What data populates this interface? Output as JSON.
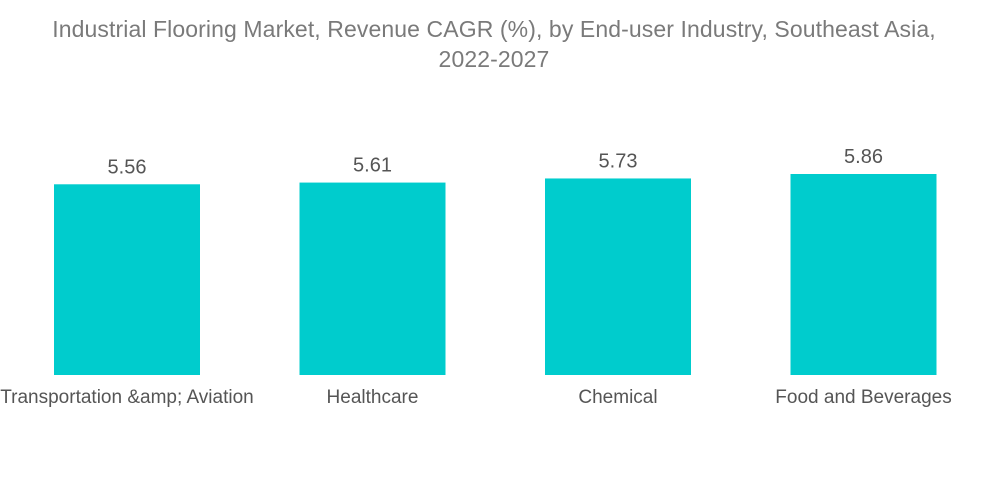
{
  "chart_data": {
    "type": "bar",
    "title_line1": "Industrial Flooring Market, Revenue CAGR (%), by End-user Industry, Southeast Asia,",
    "title_line2": "2022-2027",
    "categories": [
      "Transportation &amp; Aviation",
      "Healthcare",
      "Chemical",
      "Food and Beverages"
    ],
    "values": [
      5.56,
      5.61,
      5.73,
      5.86
    ],
    "value_labels": [
      "5.56",
      "5.61",
      "5.73",
      "5.86"
    ],
    "xlabel": "",
    "ylabel": "",
    "ylim": [
      0,
      5.86
    ],
    "grid": false,
    "legend": "none",
    "bar_color": "#00cccd"
  }
}
